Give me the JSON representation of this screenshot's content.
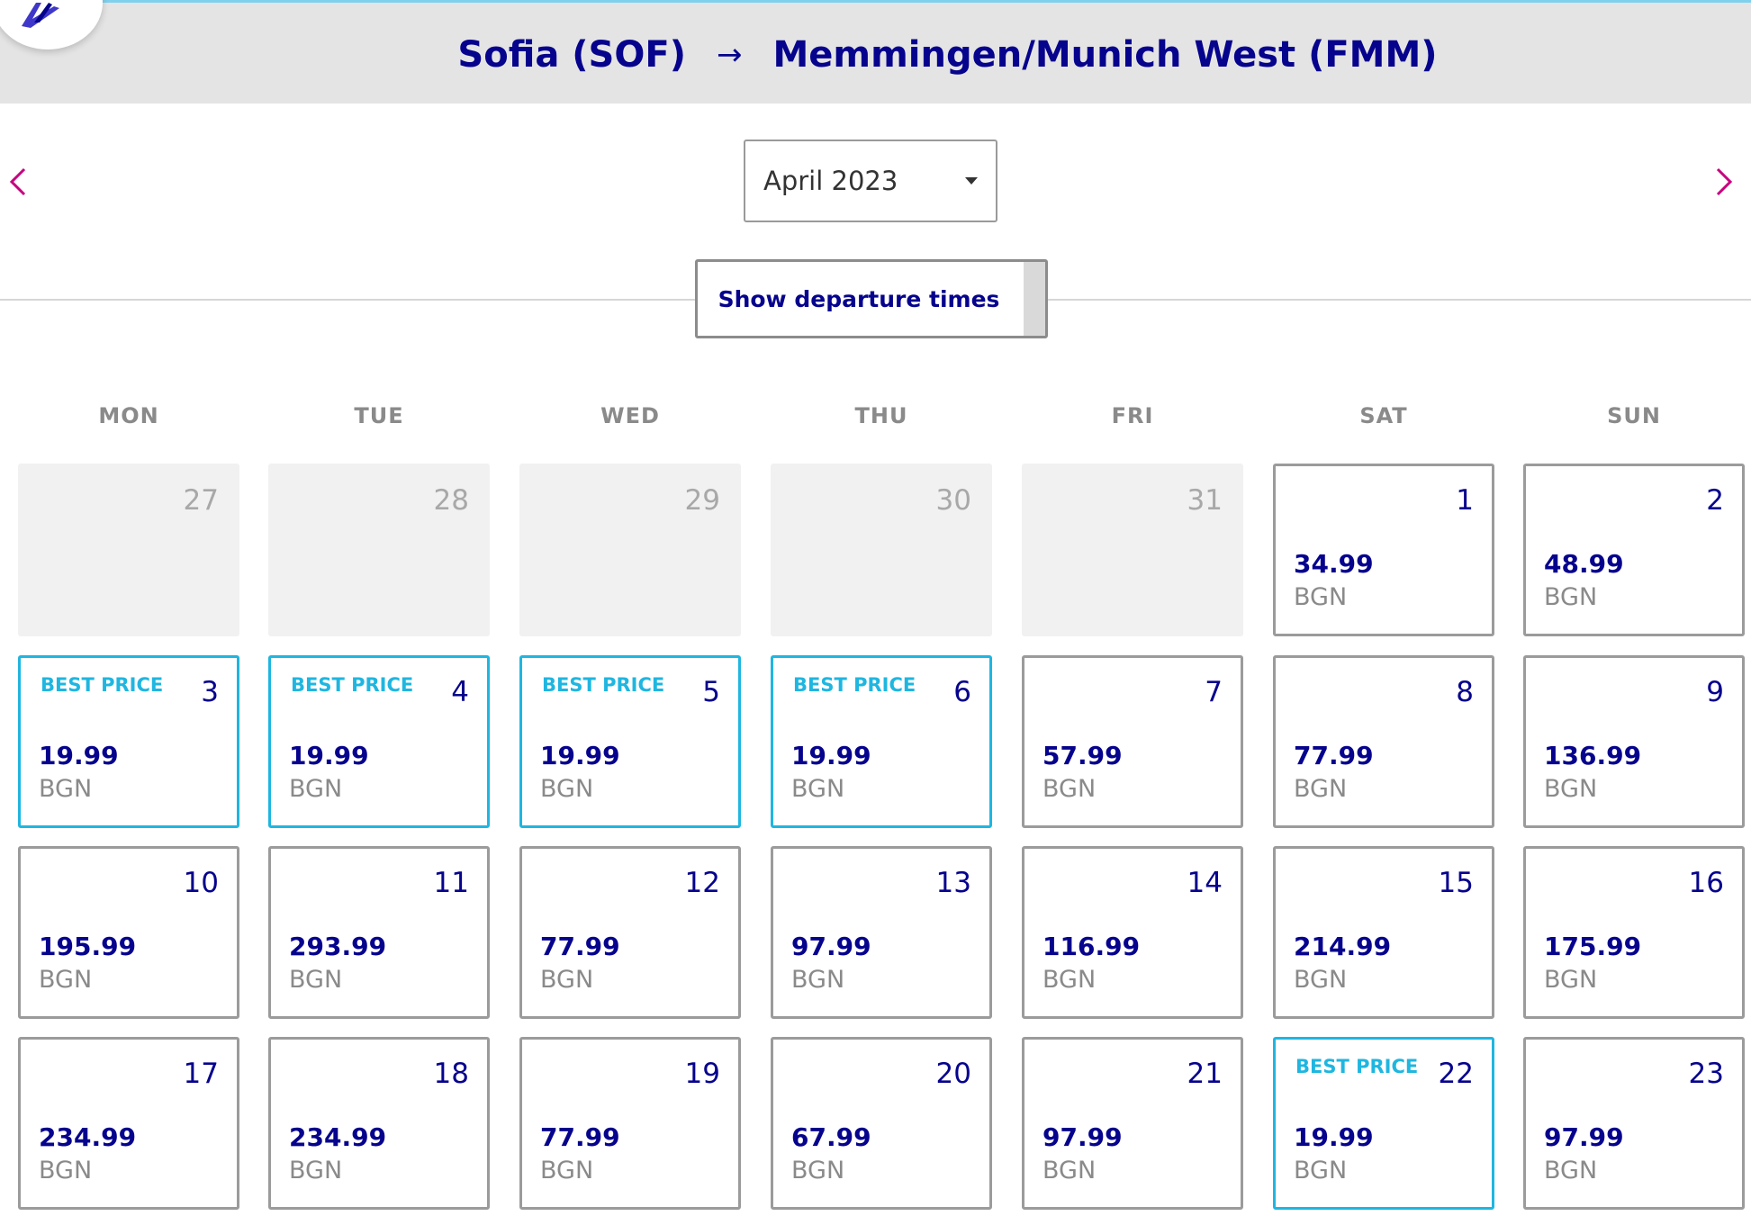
{
  "header": {
    "origin": "Sofia (SOF)",
    "arrow": "→",
    "destination": "Memmingen/Munich West (FMM)"
  },
  "colors": {
    "brand_navy": "#06038d",
    "best_price": "#1fb6e0",
    "nav_arrow": "#c6007e",
    "header_bg": "#e4e4e4"
  },
  "nav": {
    "prev_icon": "chevron-left-icon",
    "next_icon": "chevron-right-icon"
  },
  "month_select": {
    "value": "April 2023"
  },
  "departure_button": {
    "label": "Show departure times"
  },
  "calendar": {
    "weekdays": [
      "MON",
      "TUE",
      "WED",
      "THU",
      "FRI",
      "SAT",
      "SUN"
    ],
    "best_price_label": "BEST PRICE",
    "currency": "BGN",
    "weeks": [
      [
        {
          "day": "27",
          "active": false
        },
        {
          "day": "28",
          "active": false
        },
        {
          "day": "29",
          "active": false
        },
        {
          "day": "30",
          "active": false
        },
        {
          "day": "31",
          "active": false
        },
        {
          "day": "1",
          "price": "34.99",
          "currency": "BGN",
          "active": true
        },
        {
          "day": "2",
          "price": "48.99",
          "currency": "BGN",
          "active": true
        }
      ],
      [
        {
          "day": "3",
          "price": "19.99",
          "currency": "BGN",
          "active": true,
          "best": true,
          "badge": "BEST PRICE"
        },
        {
          "day": "4",
          "price": "19.99",
          "currency": "BGN",
          "active": true,
          "best": true,
          "badge": "BEST PRICE"
        },
        {
          "day": "5",
          "price": "19.99",
          "currency": "BGN",
          "active": true,
          "best": true,
          "badge": "BEST PRICE"
        },
        {
          "day": "6",
          "price": "19.99",
          "currency": "BGN",
          "active": true,
          "best": true,
          "badge": "BEST PRICE"
        },
        {
          "day": "7",
          "price": "57.99",
          "currency": "BGN",
          "active": true
        },
        {
          "day": "8",
          "price": "77.99",
          "currency": "BGN",
          "active": true
        },
        {
          "day": "9",
          "price": "136.99",
          "currency": "BGN",
          "active": true
        }
      ],
      [
        {
          "day": "10",
          "price": "195.99",
          "currency": "BGN",
          "active": true
        },
        {
          "day": "11",
          "price": "293.99",
          "currency": "BGN",
          "active": true
        },
        {
          "day": "12",
          "price": "77.99",
          "currency": "BGN",
          "active": true
        },
        {
          "day": "13",
          "price": "97.99",
          "currency": "BGN",
          "active": true
        },
        {
          "day": "14",
          "price": "116.99",
          "currency": "BGN",
          "active": true
        },
        {
          "day": "15",
          "price": "214.99",
          "currency": "BGN",
          "active": true
        },
        {
          "day": "16",
          "price": "175.99",
          "currency": "BGN",
          "active": true
        }
      ],
      [
        {
          "day": "17",
          "price": "234.99",
          "currency": "BGN",
          "active": true
        },
        {
          "day": "18",
          "price": "234.99",
          "currency": "BGN",
          "active": true
        },
        {
          "day": "19",
          "price": "77.99",
          "currency": "BGN",
          "active": true
        },
        {
          "day": "20",
          "price": "67.99",
          "currency": "BGN",
          "active": true
        },
        {
          "day": "21",
          "price": "97.99",
          "currency": "BGN",
          "active": true
        },
        {
          "day": "22",
          "price": "19.99",
          "currency": "BGN",
          "active": true,
          "best": true,
          "badge": "BEST PRICE"
        },
        {
          "day": "23",
          "price": "97.99",
          "currency": "BGN",
          "active": true
        }
      ]
    ]
  }
}
